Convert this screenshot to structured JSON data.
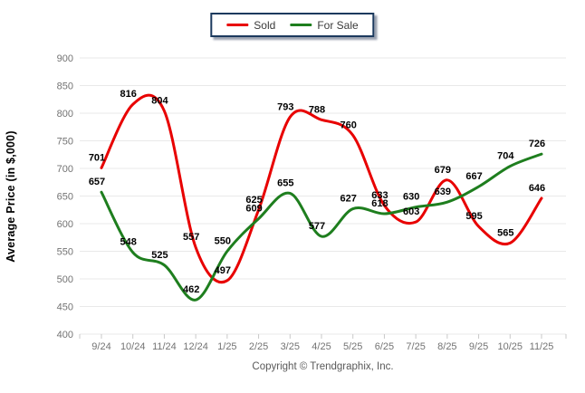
{
  "legend": {
    "items": [
      {
        "label": "Sold",
        "color": "#e80000"
      },
      {
        "label": "For Sale",
        "color": "#1e7e1e"
      }
    ]
  },
  "chart_data": {
    "type": "line",
    "x": [
      "9/24",
      "10/24",
      "11/24",
      "12/24",
      "1/25",
      "2/25",
      "3/25",
      "4/25",
      "5/25",
      "6/25",
      "7/25",
      "8/25",
      "9/25",
      "10/25",
      "11/25"
    ],
    "series": [
      {
        "name": "Sold",
        "color": "#e80000",
        "values": [
          701,
          816,
          804,
          557,
          497,
          625,
          793,
          788,
          760,
          633,
          603,
          679,
          595,
          565,
          646
        ]
      },
      {
        "name": "For Sale",
        "color": "#1e7e1e",
        "values": [
          657,
          548,
          525,
          462,
          550,
          609,
          655,
          577,
          627,
          618,
          630,
          639,
          667,
          704,
          726
        ]
      }
    ],
    "title": "",
    "xlabel": "",
    "ylabel": "Average Price (in $,000)",
    "ylim": [
      400,
      900
    ],
    "ytick_step": 50,
    "yticks": [
      400,
      450,
      500,
      550,
      600,
      650,
      700,
      750,
      800,
      850,
      900
    ],
    "grid": "horizontal",
    "legend_position": "top-center",
    "curve": "spline",
    "point_labels": true
  },
  "footer": {
    "copyright": "Copyright © Trendgraphix, Inc."
  },
  "colors": {
    "grid": "#e9e9e9",
    "axis_tick": "#c9c9c9",
    "tick_text": "#737373",
    "value_label": "#000000",
    "legend_border": "#1c3a5e"
  }
}
